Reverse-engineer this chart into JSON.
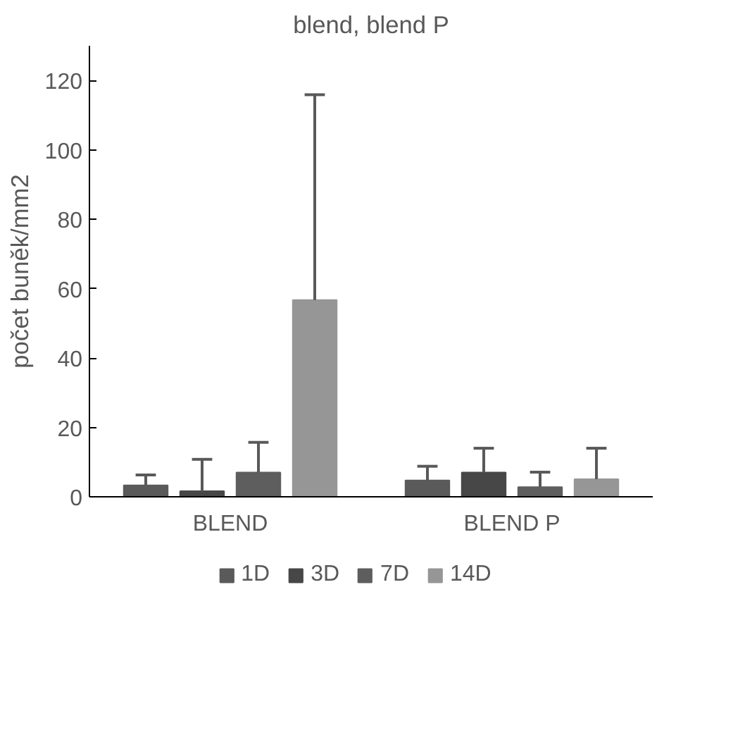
{
  "chart_data": {
    "type": "bar",
    "title": "blend, blend P",
    "ylabel": "počet buněk/mm2",
    "categories": [
      "BLEND",
      "BLEND P"
    ],
    "series": [
      {
        "name": "1D",
        "color": "#5a5a5a",
        "values": [
          3.3,
          4.7
        ],
        "errors": [
          [
            3.3,
            6.3
          ],
          [
            4.7,
            8.8
          ]
        ]
      },
      {
        "name": "3D",
        "color": "#474747",
        "values": [
          1.6,
          7.0
        ],
        "errors": [
          [
            1.6,
            10.8
          ],
          [
            7.0,
            14.0
          ]
        ]
      },
      {
        "name": "7D",
        "color": "#5e5e5e",
        "values": [
          7.0,
          2.8
        ],
        "errors": [
          [
            7.0,
            15.7
          ],
          [
            2.8,
            7.1
          ]
        ]
      },
      {
        "name": "14D",
        "color": "#969696",
        "values": [
          56.7,
          5.1
        ],
        "errors": [
          [
            56.7,
            115.9
          ],
          [
            5.1,
            14.0
          ]
        ]
      }
    ],
    "ylim": [
      0,
      130
    ],
    "yticks": [
      0,
      20,
      40,
      60,
      80,
      100,
      120
    ],
    "grid": false,
    "legend": "bottom"
  }
}
